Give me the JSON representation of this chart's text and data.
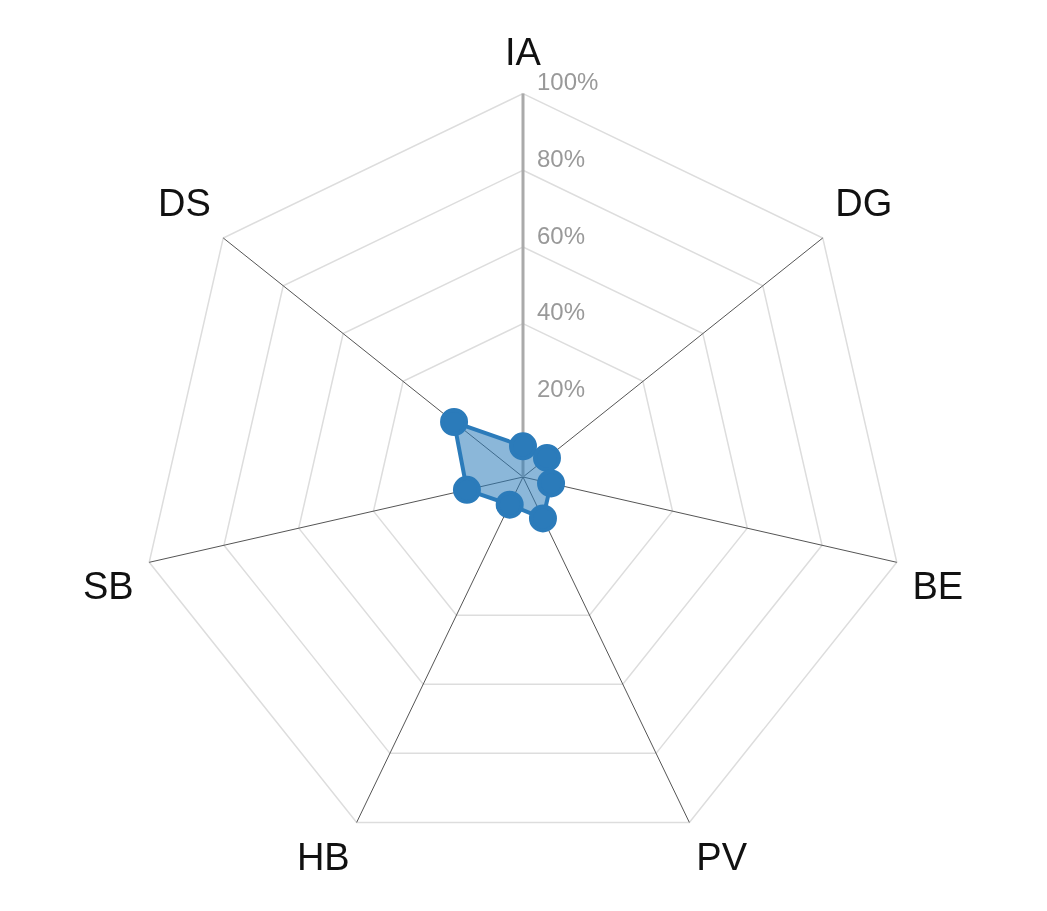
{
  "chart_data": {
    "type": "radar",
    "categories": [
      "IA",
      "DG",
      "BE",
      "PV",
      "HB",
      "SB",
      "DS"
    ],
    "series": [
      {
        "color": "#2b7bba",
        "values": [
          8,
          8,
          7.5,
          12,
          8,
          15,
          23
        ]
      }
    ],
    "ylim": [
      0,
      100
    ],
    "yticks": [
      {
        "value": 20,
        "label": "20%"
      },
      {
        "value": 40,
        "label": "40%"
      },
      {
        "value": 60,
        "label": "60%"
      },
      {
        "value": 80,
        "label": "80%"
      },
      {
        "value": 100,
        "label": "100%"
      }
    ],
    "grid": true,
    "legend": false,
    "marker": "circle"
  }
}
